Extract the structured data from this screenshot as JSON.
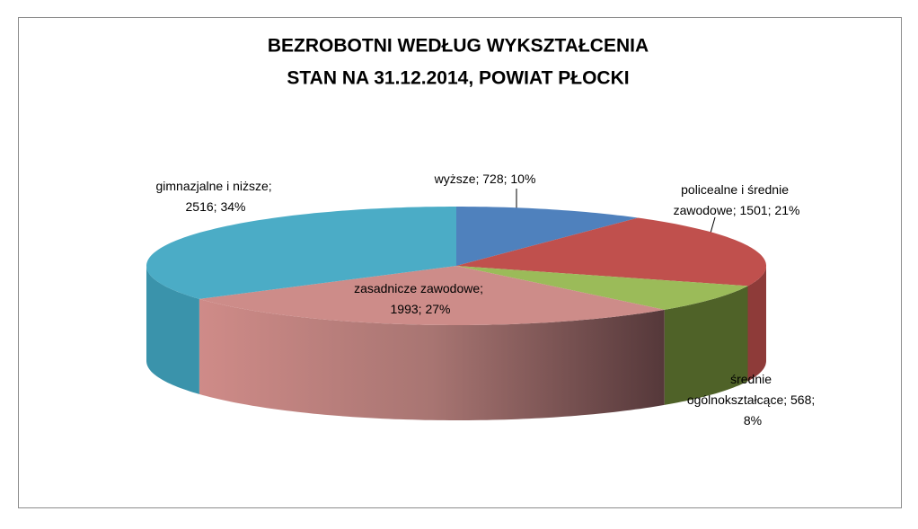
{
  "chart_data": {
    "type": "pie",
    "title": [
      "BEZROBOTNI WEDŁUG WYKSZTAŁCENIA",
      "STAN NA 31.12.2014, POWIAT PŁOCKI"
    ],
    "categories": [
      "wyższe",
      "policealne i średnie zawodowe",
      "średnie ogólnokształcące",
      "zasadnicze zawodowe",
      "gimnazjalne i niższe"
    ],
    "values": [
      728,
      1501,
      568,
      1993,
      2516
    ],
    "value_labels": [
      "wyższe; 728; 10%",
      "policealne i średnie zawodowe; 1501; 21%",
      "średnie ogólnokształcące; 568; 8%",
      "zasadnicze zawodowe; 1993; 27%",
      "gimnazjalne i niższe; 2516; 34%"
    ],
    "colors": [
      "#4f81bd",
      "#c0504d",
      "#9bbb59",
      "#cd8c89",
      "#4bacc6"
    ],
    "side_colors": [
      "#3a6190",
      "#8e3b39",
      "#4f6228",
      "url(#pinkSide)",
      "#3a93ab"
    ]
  }
}
